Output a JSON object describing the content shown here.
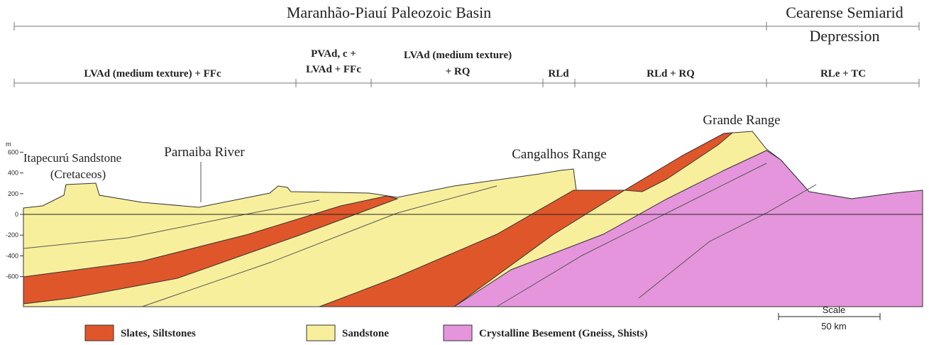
{
  "regions": [
    {
      "lines": [
        "Maranhão-Piauí Paleozoic Basin"
      ]
    },
    {
      "lines": [
        "Cearense Semiarid",
        "Depression"
      ]
    }
  ],
  "soil_units": [
    {
      "lines": [
        "LVAd (medium texture) + FFc"
      ]
    },
    {
      "lines": [
        "PVAd, c +",
        "LVAd + FFc"
      ]
    },
    {
      "lines": [
        "LVAd (medium texture)",
        "+ RQ"
      ]
    },
    {
      "lines": [
        "RLd"
      ]
    },
    {
      "lines": [
        "RLd + RQ"
      ]
    },
    {
      "lines": [
        "RLe + TC"
      ]
    }
  ],
  "features": [
    {
      "lines": [
        "Itapecurú Sandstone",
        "(Cretaceos)"
      ]
    },
    {
      "lines": [
        "Parnaiba River"
      ]
    },
    {
      "lines": [
        "Cangalhos Range"
      ]
    },
    {
      "lines": [
        "Grande Range"
      ]
    }
  ],
  "elevation_axis": {
    "unit": "m",
    "ticks": [
      600,
      400,
      200,
      0,
      -200,
      -400,
      -600
    ]
  },
  "legend": [
    "Slates, Siltstones",
    "Sandstone",
    "Crystalline Besement (Gneiss, Shists)"
  ],
  "scale": {
    "title": "Scale",
    "length": "50 km"
  }
}
